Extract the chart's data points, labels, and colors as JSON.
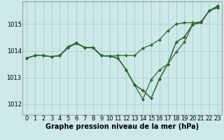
{
  "xlabel": "Graphe pression niveau de la mer (hPa)",
  "ylabel": "",
  "background_color": "#cce8e8",
  "grid_color": "#aacccc",
  "line_color": "#2d6a2d",
  "x_ticks": [
    0,
    1,
    2,
    3,
    4,
    5,
    6,
    7,
    8,
    9,
    10,
    11,
    12,
    13,
    14,
    15,
    16,
    17,
    18,
    19,
    20,
    21,
    22,
    23
  ],
  "y_ticks": [
    1012,
    1013,
    1014,
    1015
  ],
  "ylim": [
    1011.6,
    1015.85
  ],
  "xlim": [
    -0.5,
    23.5
  ],
  "lines": [
    [
      1013.72,
      1013.82,
      1013.82,
      1013.78,
      1013.82,
      1014.12,
      1014.28,
      1014.12,
      1014.12,
      1013.82,
      1013.8,
      1013.82,
      1013.82,
      1013.82,
      1014.1,
      1014.22,
      1014.42,
      1014.75,
      1015.0,
      1015.05,
      1015.05,
      1015.08,
      1015.5,
      1015.62
    ],
    [
      1013.72,
      1013.82,
      1013.82,
      1013.78,
      1013.82,
      1014.12,
      1014.28,
      1014.12,
      1014.12,
      1013.82,
      1013.8,
      1013.72,
      1013.28,
      1012.72,
      1012.18,
      1012.92,
      1013.28,
      1013.5,
      1013.95,
      1014.32,
      1014.98,
      1015.08,
      1015.5,
      1015.62
    ],
    [
      1013.72,
      1013.82,
      1013.82,
      1013.78,
      1013.82,
      1014.15,
      1014.3,
      1014.12,
      1014.12,
      1013.82,
      1013.8,
      1013.72,
      1013.28,
      1012.72,
      1012.52,
      1012.22,
      1012.95,
      1013.5,
      1014.32,
      1014.52,
      1014.98,
      1015.05,
      1015.5,
      1015.65
    ],
    [
      1013.72,
      1013.82,
      1013.82,
      1013.78,
      1013.82,
      1014.15,
      1014.3,
      1014.12,
      1014.12,
      1013.82,
      1013.8,
      1013.72,
      1013.28,
      1012.72,
      1012.52,
      1012.22,
      1012.95,
      1013.5,
      1014.32,
      1014.52,
      1014.98,
      1015.08,
      1015.5,
      1015.68
    ]
  ],
  "marker": "D",
  "markersize": 2.0,
  "linewidth": 0.9,
  "xlabel_fontsize": 7,
  "tick_fontsize": 6,
  "xlabel_fontweight": "bold"
}
